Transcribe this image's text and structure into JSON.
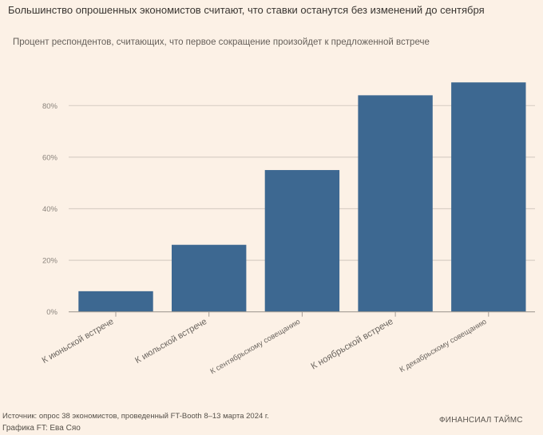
{
  "header": {
    "title": "Большинство опрошенных экономистов считают, что ставки останутся без изменений до сентября",
    "subtitle": "Процент респондентов, считающих, что первое сокращение произойдет к предложенной встрече"
  },
  "footer": {
    "source": "Источник: опрос 38 экономистов, проведенный FT-Booth 8–13 марта 2024 г.",
    "credit": "Графика FT: Ева Сяо",
    "brand": "ФИНАНСИАЛ ТАЙМС"
  },
  "colors": {
    "background": "#fcf1e6",
    "bar": "#3d6891",
    "gridline": "#d9d0c6",
    "axis": "#a39c95"
  },
  "chart_data": {
    "type": "bar",
    "title": "Большинство опрошенных экономистов считают, что ставки останутся без изменений до сентября",
    "subtitle": "Процент респондентов, считающих, что первое сокращение произойдет к предложенной встрече",
    "xlabel": "",
    "ylabel": "",
    "categories": [
      "К июньской встрече",
      "К июльской встрече",
      "К сентябрьскому совещанию",
      "К ноябрьской встрече",
      "К декабрьскому совещанию"
    ],
    "values": [
      8,
      26,
      55,
      84,
      89
    ],
    "unit": "%",
    "ylim": [
      0,
      100
    ],
    "yticks": [
      0,
      20,
      40,
      60,
      80
    ],
    "ytick_labels": [
      "0%",
      "20%",
      "40%",
      "60%",
      "80%"
    ],
    "grid": true,
    "legend": "none"
  }
}
